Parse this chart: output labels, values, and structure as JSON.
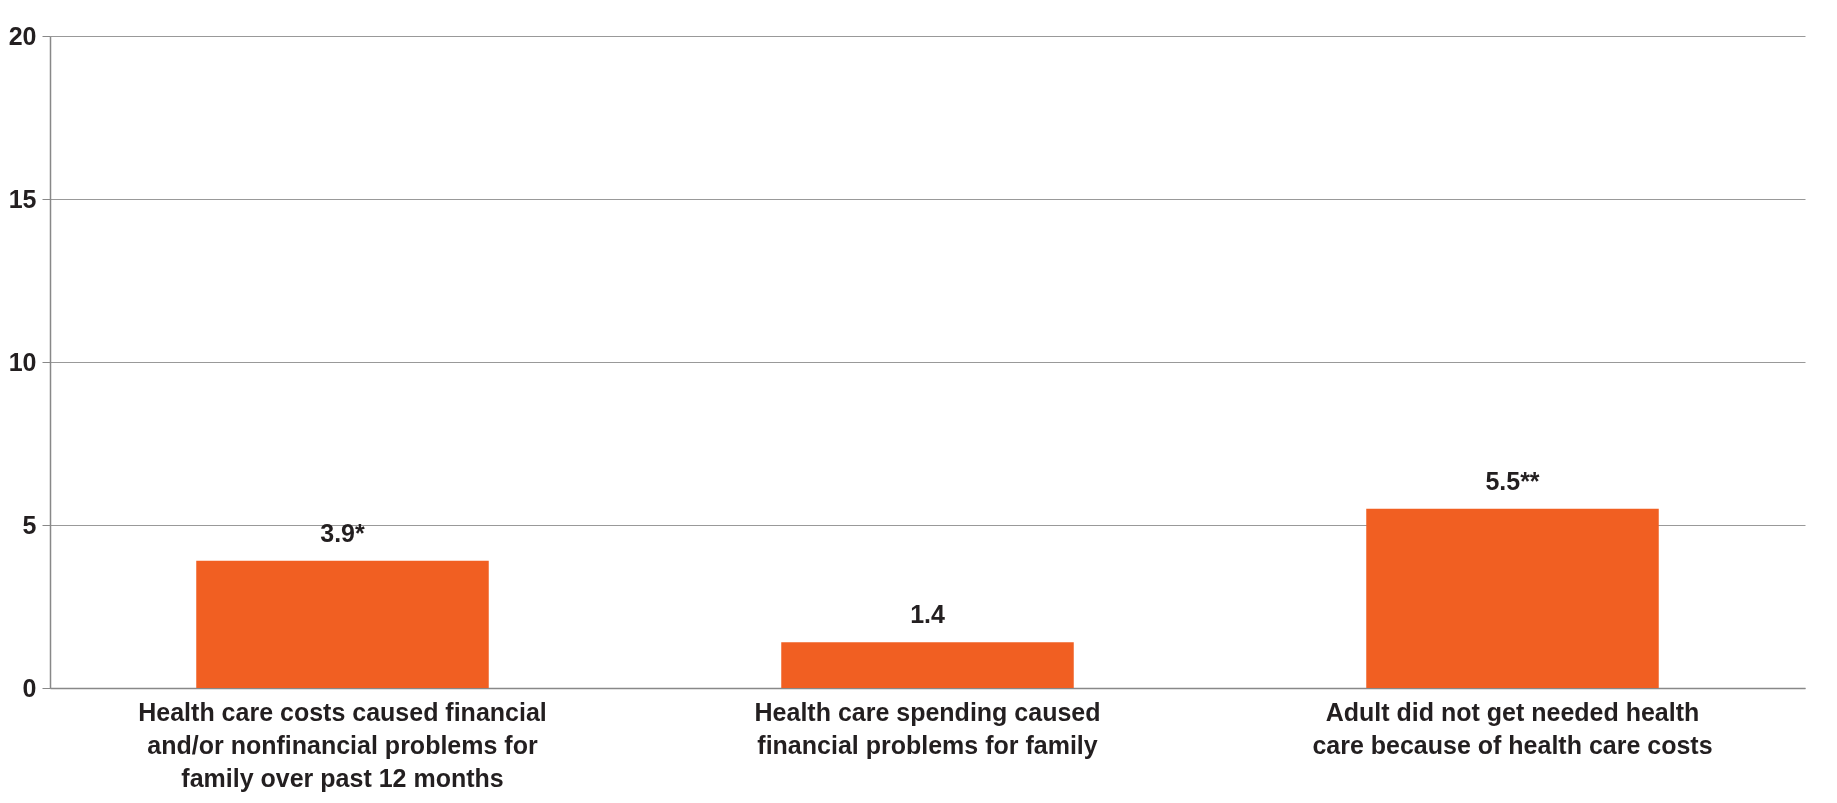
{
  "chart_data": {
    "type": "bar",
    "categories": [
      "Health care costs caused financial and/or nonfinancial problems for family over past 12 months",
      "Health care spending caused financial problems for family",
      "Adult did not get needed health care because of health care costs"
    ],
    "values": [
      3.9,
      1.4,
      5.5
    ],
    "value_labels": [
      "3.9*",
      "1.4",
      "5.5**"
    ],
    "color": "#f15f22",
    "ylim": [
      0,
      20
    ],
    "yticks": [
      0,
      5,
      10,
      15,
      20
    ],
    "grid": "y"
  }
}
